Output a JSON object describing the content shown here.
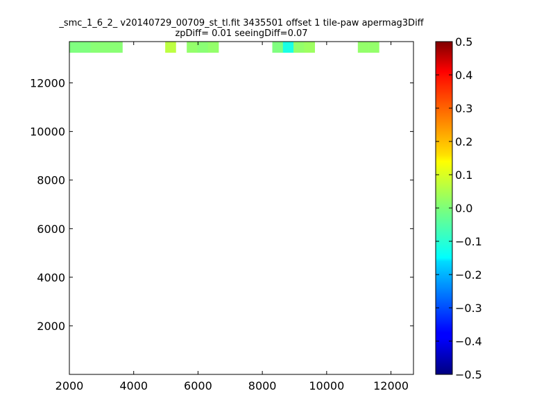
{
  "chart_data": {
    "type": "heatmap",
    "title_line1": "_smc_1_6_2_ v20140729_00709_st_tl.fit 3435501 offset 1 tile-paw apermag3Diff",
    "title_line2": "zpDiff= 0.01 seeingDiff=0.07",
    "xlim": [
      2000,
      12700
    ],
    "ylim": [
      0,
      13700
    ],
    "x_ticks": [
      "2000",
      "4000",
      "6000",
      "8000",
      "10000",
      "12000"
    ],
    "y_ticks": [
      "2000",
      "4000",
      "6000",
      "8000",
      "10000",
      "12000"
    ],
    "x_tick_values": [
      2000,
      4000,
      6000,
      8000,
      10000,
      12000
    ],
    "y_tick_values": [
      2000,
      4000,
      6000,
      8000,
      10000,
      12000
    ],
    "colorbar": {
      "min": -0.5,
      "max": 0.5,
      "tick_values": [
        0.5,
        0.4,
        0.3,
        0.2,
        0.1,
        0.0,
        -0.1,
        -0.2,
        -0.3,
        -0.4,
        -0.5
      ],
      "tick_labels": [
        "0.5",
        "0.4",
        "0.3",
        "0.2",
        "0.1",
        "0.0",
        "−0.1",
        "−0.2",
        "−0.3",
        "−0.4",
        "−0.5"
      ],
      "colormap": "jet"
    },
    "cell_size": [
      330,
      440
    ],
    "cells": [
      {
        "x": 2000,
        "y": 13250,
        "v": 0.0
      },
      {
        "x": 2330,
        "y": 13250,
        "v": 0.0
      },
      {
        "x": 2660,
        "y": 13250,
        "v": 0.01
      },
      {
        "x": 2990,
        "y": 13250,
        "v": 0.01
      },
      {
        "x": 3320,
        "y": 13250,
        "v": 0.01
      },
      {
        "x": 4980,
        "y": 13250,
        "v": 0.06
      },
      {
        "x": 5650,
        "y": 13250,
        "v": 0.02
      },
      {
        "x": 5980,
        "y": 13250,
        "v": 0.01
      },
      {
        "x": 6310,
        "y": 13250,
        "v": 0.02
      },
      {
        "x": 8310,
        "y": 13250,
        "v": 0.0
      },
      {
        "x": 8640,
        "y": 13250,
        "v": -0.1
      },
      {
        "x": 8970,
        "y": 13250,
        "v": 0.02
      },
      {
        "x": 9300,
        "y": 13250,
        "v": 0.03
      },
      {
        "x": 10970,
        "y": 13250,
        "v": 0.02
      },
      {
        "x": 11300,
        "y": 13250,
        "v": 0.02
      }
    ]
  }
}
